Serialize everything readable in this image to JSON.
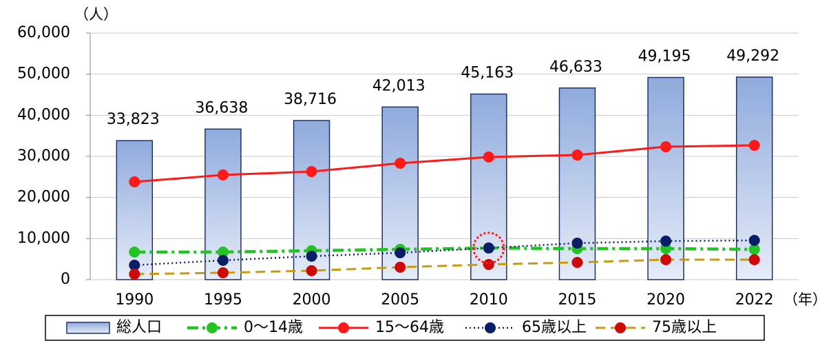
{
  "chart_data": {
    "type": "bar",
    "y_unit": "（人）",
    "x_unit": "（年）",
    "categories": [
      "1990",
      "1995",
      "2000",
      "2005",
      "2010",
      "2015",
      "2020",
      "2022"
    ],
    "ylim": [
      0,
      60000
    ],
    "yticks": [
      0,
      {
        "value": 10000,
        "label": "10,000"
      },
      {
        "value": 20000,
        "label": "20,000"
      },
      {
        "value": 30000,
        "label": "30,000"
      },
      {
        "value": 40000,
        "label": "40,000"
      },
      {
        "value": 50000,
        "label": "50,000"
      },
      {
        "value": 60000,
        "label": "60,000"
      }
    ],
    "series": [
      {
        "name": "総人口",
        "type": "bar",
        "color": "#8faadc",
        "values": [
          33823,
          36638,
          38716,
          42013,
          45163,
          46633,
          49195,
          49292
        ],
        "value_labels": [
          "33,823",
          "36,638",
          "38,716",
          "42,013",
          "45,163",
          "46,633",
          "49,195",
          "49,292"
        ]
      },
      {
        "name": "0～14歳",
        "type": "line",
        "line_style": "dashdot",
        "color": "#22c322",
        "values": [
          6700,
          6700,
          7040,
          7370,
          7700,
          7540,
          7540,
          7370
        ]
      },
      {
        "name": "15～64歳",
        "type": "line",
        "line_style": "solid",
        "color": "#ff1a1a",
        "values": [
          23800,
          25470,
          26300,
          28320,
          29830,
          30330,
          32340,
          32680
        ]
      },
      {
        "name": "65歳以上",
        "type": "line",
        "line_style": "dotted",
        "color": "#0a1f66",
        "values": [
          3520,
          4690,
          5700,
          6540,
          7700,
          8880,
          9380,
          9550
        ]
      },
      {
        "name": "75歳以上",
        "type": "line",
        "line_style": "dashed",
        "color": "#c89a10",
        "marker_color": "#cc0a0a",
        "values": [
          1340,
          1680,
          2180,
          3020,
          3690,
          4190,
          4860,
          4860
        ]
      }
    ]
  }
}
